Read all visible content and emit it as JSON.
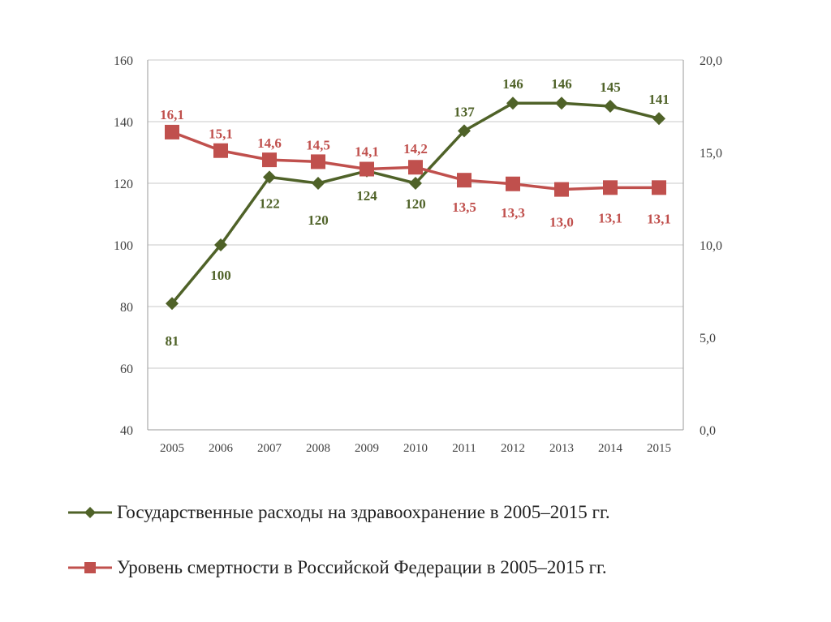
{
  "chart_data": {
    "type": "line",
    "x": [
      "2005",
      "2006",
      "2007",
      "2008",
      "2009",
      "2010",
      "2011",
      "2012",
      "2013",
      "2014",
      "2015"
    ],
    "y_left": {
      "ylim": [
        40,
        160
      ],
      "ticks": [
        "40",
        "60",
        "80",
        "100",
        "120",
        "140",
        "160"
      ]
    },
    "y_right": {
      "ylim": [
        0,
        20
      ],
      "ticks": [
        "0,0",
        "5,0",
        "10,0",
        "15,0",
        "20,0"
      ]
    },
    "grid": true,
    "legend_position": "bottom",
    "series": [
      {
        "name": "Государственные расходы на здравоохранение в 2005–2015  гг.",
        "axis": "left",
        "marker": "diamond",
        "color": "#4f6228",
        "values": [
          81,
          100,
          122,
          120,
          124,
          120,
          137,
          146,
          146,
          145,
          141
        ],
        "labels": [
          "81",
          "100",
          "122",
          "120",
          "124",
          "120",
          "137",
          "146",
          "146",
          "145",
          "141"
        ]
      },
      {
        "name": "Уровень смертности в Российской Федерации в 2005–2015  гг.",
        "axis": "right",
        "marker": "square",
        "color": "#c0504d",
        "values": [
          16.1,
          15.1,
          14.6,
          14.5,
          14.1,
          14.2,
          13.5,
          13.3,
          13.0,
          13.1,
          13.1
        ],
        "labels": [
          "16,1",
          "15,1",
          "14,6",
          "14,5",
          "14,1",
          "14,2",
          "13,5",
          "13,3",
          "13,0",
          "13,1",
          "13,1"
        ]
      }
    ]
  }
}
